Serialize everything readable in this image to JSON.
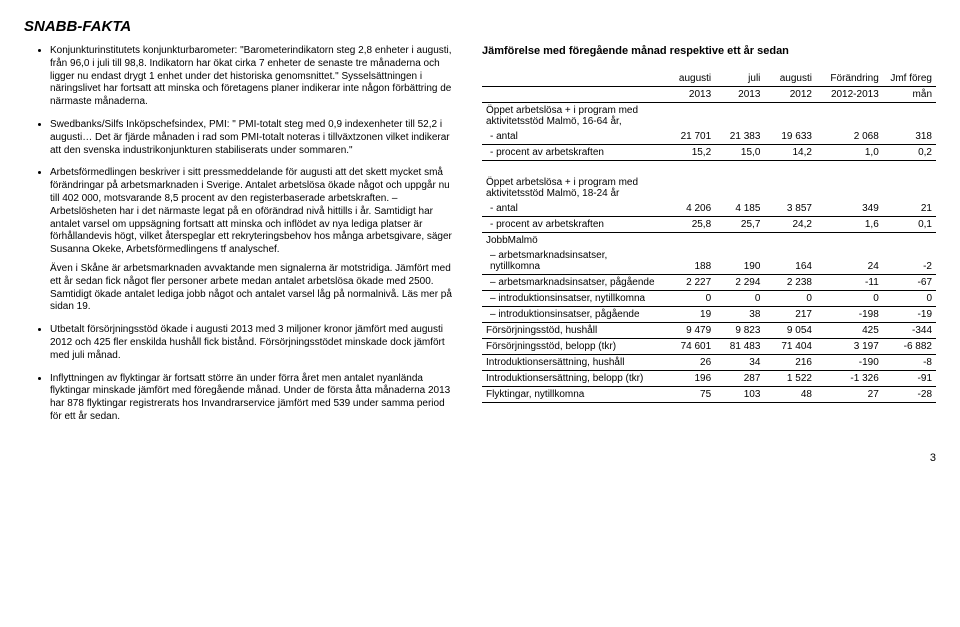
{
  "title": "SNABB-FAKTA",
  "bullets": [
    {
      "paras": [
        "Konjunkturinstitutets konjunkturbarometer: \"Barometerindikatorn steg 2,8 enheter i augusti, från 96,0 i juli till 98,8. Indikatorn har ökat cirka 7 enheter de senaste tre månaderna och ligger nu endast drygt 1 enhet under det historiska genomsnittet.\" Sysselsättningen i näringslivet har fortsatt att minska och företagens planer indikerar inte någon förbättring de närmaste månaderna."
      ]
    },
    {
      "paras": [
        "Swedbanks/Silfs Inköpschefsindex, PMI: \" PMI-totalt steg med 0,9 indexenheter till 52,2 i augusti… Det är fjärde månaden i rad som PMI-totalt noteras i tillväxtzonen vilket indikerar att den svenska industrikonjunkturen stabiliserats under sommaren.\""
      ]
    },
    {
      "paras": [
        "Arbetsförmedlingen beskriver i sitt pressmeddelande för augusti att det skett mycket små förändringar på arbetsmarknaden i Sverige. Antalet arbetslösa ökade något och uppgår nu till 402 000, motsvarande 8,5 procent av den registerbaserade arbetskraften. – Arbetslösheten har i det närmaste legat på en oförändrad nivå hittills i år. Samtidigt har antalet varsel om uppsägning fortsatt att minska och inflödet av nya lediga platser är förhållandevis högt, vilket återspeglar ett rekryteringsbehov hos många arbetsgivare, säger Susanna Okeke, Arbetsförmedlingens tf analyschef.",
        "Även i Skåne är arbetsmarknaden avvaktande men signalerna är motstridiga. Jämfört med ett år sedan fick något fler personer arbete medan antalet arbetslösa ökade med 2500. Samtidigt ökade antalet lediga jobb något och antalet varsel låg på normalnivå. Läs mer på sidan 19."
      ]
    },
    {
      "paras": [
        "Utbetalt försörjningsstöd ökade i augusti 2013 med 3 miljoner kronor jämfört med augusti 2012 och 425 fler enskilda hushåll fick bistånd. Försörjningsstödet minskade dock jämfört med juli månad."
      ]
    },
    {
      "paras": [
        "Inflyttningen av flyktingar är fortsatt större än under förra året men antalet nyanlända flyktingar minskade jämfört med föregående månad. Under de första åtta månaderna 2013 har 878 flyktingar registrerats hos Invandrarservice jämfört med 539 under samma period för ett år sedan."
      ]
    }
  ],
  "tableHeading": "Jämförelse med föregående månad respektive ett år sedan",
  "tableHeader": {
    "c1": "",
    "c2a": "augusti",
    "c2b": "2013",
    "c3a": "juli",
    "c3b": "2013",
    "c4a": "augusti",
    "c4b": "2012",
    "c5a": "Förändring",
    "c5b": "2012-2013",
    "c6a": "Jmf föreg",
    "c6b": "mån"
  },
  "rows": [
    {
      "label": "Öppet arbetslösa + i program med aktivitetsstöd Malmö, 16-64 år,",
      "vals": [
        "",
        "",
        "",
        "",
        ""
      ],
      "noborder": true
    },
    {
      "label": " - antal",
      "vals": [
        "21 701",
        "21 383",
        "19 633",
        "2 068",
        "318"
      ],
      "indent": true
    },
    {
      "label": " - procent av arbetskraften",
      "vals": [
        "15,2",
        "15,0",
        "14,2",
        "1,0",
        "0,2"
      ],
      "indent": true
    },
    {
      "spacer": true
    },
    {
      "label": "Öppet arbetslösa + i program med aktivitetsstöd Malmö, 18-24 år",
      "vals": [
        "",
        "",
        "",
        "",
        ""
      ],
      "noborder": true
    },
    {
      "label": " - antal",
      "vals": [
        "4 206",
        "4 185",
        "3 857",
        "349",
        "21"
      ],
      "indent": true
    },
    {
      "label": " - procent av arbetskraften",
      "vals": [
        "25,8",
        "25,7",
        "24,2",
        "1,6",
        "0,1"
      ],
      "indent": true
    },
    {
      "label": "JobbMalmö",
      "vals": [
        "",
        "",
        "",
        "",
        ""
      ],
      "noborder": true
    },
    {
      "label": " – arbetsmarknadsinsatser, nytillkomna",
      "vals": [
        "188",
        "190",
        "164",
        "24",
        "-2"
      ],
      "indent": true
    },
    {
      "label": " – arbetsmarknadsinsatser, pågående",
      "vals": [
        "2 227",
        "2 294",
        "2 238",
        "-11",
        "-67"
      ],
      "indent": true
    },
    {
      "label": " – introduktionsinsatser, nytillkomna",
      "vals": [
        "0",
        "0",
        "0",
        "0",
        "0"
      ],
      "indent": true
    },
    {
      "label": " – introduktionsinsatser, pågående",
      "vals": [
        "19",
        "38",
        "217",
        "-198",
        "-19"
      ],
      "indent": true
    },
    {
      "label": "Försörjningsstöd, hushåll",
      "vals": [
        "9 479",
        "9 823",
        "9 054",
        "425",
        "-344"
      ]
    },
    {
      "label": "Försörjningsstöd, belopp (tkr)",
      "vals": [
        "74 601",
        "81 483",
        "71 404",
        "3 197",
        "-6 882"
      ]
    },
    {
      "label": "Introduktionsersättning, hushåll",
      "vals": [
        "26",
        "34",
        "216",
        "-190",
        "-8"
      ]
    },
    {
      "label": "Introduktionsersättning, belopp (tkr)",
      "vals": [
        "196",
        "287",
        "1 522",
        "-1 326",
        "-91"
      ]
    },
    {
      "label": "Flyktingar, nytillkomna",
      "vals": [
        "75",
        "103",
        "48",
        "27",
        "-28"
      ]
    }
  ],
  "pageNumber": "3",
  "colWidths": [
    "200",
    "55",
    "55",
    "55",
    "70",
    "60"
  ]
}
